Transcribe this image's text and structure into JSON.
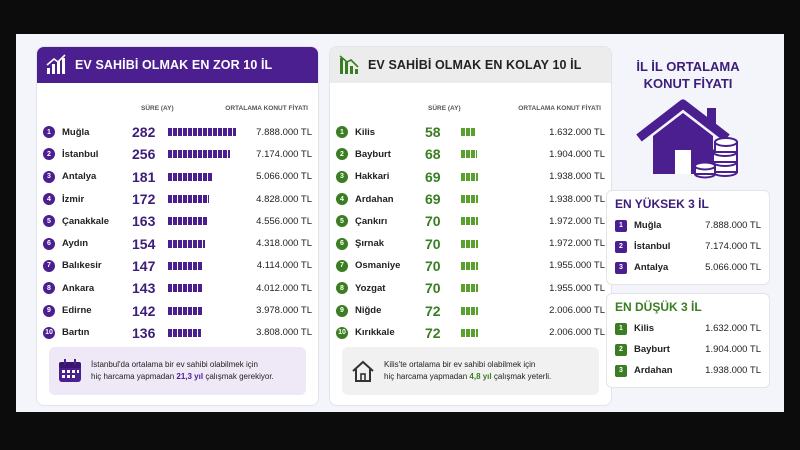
{
  "hardest": {
    "title": "EV SAHİBİ OLMAK EN ZOR 10 İL",
    "col_duration": "SÜRE (AY)",
    "col_price": "ORTALAMA KONUT FİYATI",
    "rows": [
      {
        "rank": "1",
        "city": "Muğla",
        "months": "282",
        "price": "7.888.000 TL",
        "level": 282
      },
      {
        "rank": "2",
        "city": "İstanbul",
        "months": "256",
        "price": "7.174.000 TL",
        "level": 256
      },
      {
        "rank": "3",
        "city": "Antalya",
        "months": "181",
        "price": "5.066.000 TL",
        "level": 181
      },
      {
        "rank": "4",
        "city": "İzmir",
        "months": "172",
        "price": "4.828.000 TL",
        "level": 172
      },
      {
        "rank": "5",
        "city": "Çanakkale",
        "months": "163",
        "price": "4.556.000 TL",
        "level": 163
      },
      {
        "rank": "6",
        "city": "Aydın",
        "months": "154",
        "price": "4.318.000 TL",
        "level": 154
      },
      {
        "rank": "7",
        "city": "Balıkesir",
        "months": "147",
        "price": "4.114.000 TL",
        "level": 147
      },
      {
        "rank": "8",
        "city": "Ankara",
        "months": "143",
        "price": "4.012.000 TL",
        "level": 143
      },
      {
        "rank": "9",
        "city": "Edirne",
        "months": "142",
        "price": "3.978.000 TL",
        "level": 142
      },
      {
        "rank": "10",
        "city": "Bartın",
        "months": "136",
        "price": "3.808.000 TL",
        "level": 136
      }
    ],
    "note_a": "İstanbul'da ortalama bir ev sahibi olabilmek için",
    "note_b": "hiç harcama yapmadan",
    "note_hl": "21,3 yıl",
    "note_c": "çalışmak gerekiyor."
  },
  "easiest": {
    "title": "EV SAHİBİ OLMAK EN KOLAY 10 İL",
    "col_duration": "SÜRE (AY)",
    "col_price": "ORTALAMA KONUT FİYATI",
    "rows": [
      {
        "rank": "1",
        "city": "Kilis",
        "months": "58",
        "price": "1.632.000 TL",
        "level": 58
      },
      {
        "rank": "2",
        "city": "Bayburt",
        "months": "68",
        "price": "1.904.000 TL",
        "level": 68
      },
      {
        "rank": "3",
        "city": "Hakkari",
        "months": "69",
        "price": "1.938.000 TL",
        "level": 69
      },
      {
        "rank": "4",
        "city": "Ardahan",
        "months": "69",
        "price": "1.938.000 TL",
        "level": 69
      },
      {
        "rank": "5",
        "city": "Çankırı",
        "months": "70",
        "price": "1.972.000 TL",
        "level": 70
      },
      {
        "rank": "6",
        "city": "Şırnak",
        "months": "70",
        "price": "1.972.000 TL",
        "level": 70
      },
      {
        "rank": "7",
        "city": "Osmaniye",
        "months": "70",
        "price": "1.955.000 TL",
        "level": 70
      },
      {
        "rank": "8",
        "city": "Yozgat",
        "months": "70",
        "price": "1.955.000 TL",
        "level": 70
      },
      {
        "rank": "9",
        "city": "Niğde",
        "months": "72",
        "price": "2.006.000 TL",
        "level": 72
      },
      {
        "rank": "10",
        "city": "Kırıkkale",
        "months": "72",
        "price": "2.006.000 TL",
        "level": 72
      }
    ],
    "note_a": "Kilis'te ortalama bir ev sahibi olabilmek için",
    "note_b": "hiç harcama yapmadan",
    "note_hl": "4,8 yıl",
    "note_c": "çalışmak yeterli."
  },
  "summary": {
    "title_line1": "İL İL ORTALAMA",
    "title_line2": "KONUT FİYATI",
    "top_title": "EN YÜKSEK 3 İL",
    "top": [
      {
        "rank": "1",
        "city": "Muğla",
        "price": "7.888.000 TL"
      },
      {
        "rank": "2",
        "city": "İstanbul",
        "price": "7.174.000 TL"
      },
      {
        "rank": "3",
        "city": "Antalya",
        "price": "5.066.000 TL"
      }
    ],
    "low_title": "EN DÜŞÜK 3 İL",
    "low": [
      {
        "rank": "1",
        "city": "Kilis",
        "price": "1.632.000 TL"
      },
      {
        "rank": "2",
        "city": "Bayburt",
        "price": "1.904.000 TL"
      },
      {
        "rank": "3",
        "city": "Ardahan",
        "price": "1.938.000 TL"
      }
    ]
  },
  "colors": {
    "purple": "#4b1f8f",
    "green": "#3a7d22",
    "light_green": "#5aa02c"
  },
  "icons": {
    "hardest": "chart-up-icon",
    "easiest": "chart-down-icon",
    "calendar": "calendar-icon",
    "house": "house-icon",
    "house_coins": "house-coins-icon"
  }
}
